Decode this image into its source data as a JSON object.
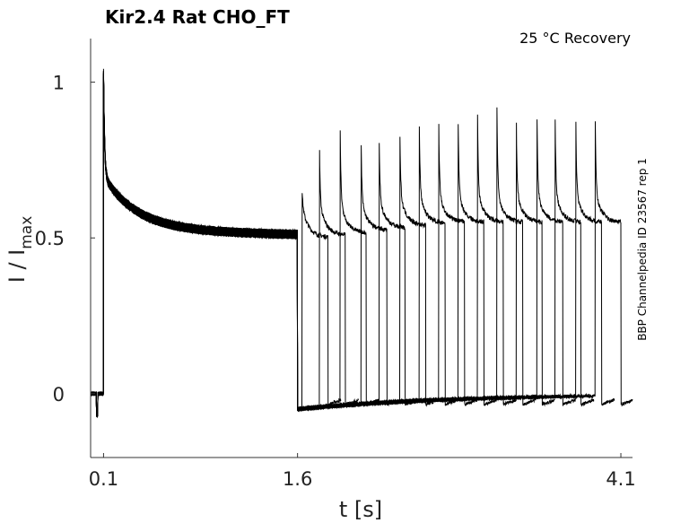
{
  "chart_data": {
    "type": "line",
    "title": "Kir2.4  Rat  CHO_FT",
    "subtitle": "25 °C  Recovery",
    "side_label": "BBP Channelpedia ID 23567 rep 1",
    "xlabel": "t [s]",
    "ylabel": "I / I",
    "ylabel_sub": "max",
    "xlim": [
      0.0,
      4.19
    ],
    "ylim": [
      -0.205,
      1.14
    ],
    "xticks": [
      0.1,
      1.6,
      4.1
    ],
    "xtick_labels": [
      "0.1",
      "1.6",
      "4.1"
    ],
    "yticks": [
      0,
      0.5,
      1
    ],
    "ytick_labels": [
      "0",
      "0.5",
      "1"
    ],
    "grid": false,
    "prepulse": {
      "start": 0.1,
      "end": 1.6,
      "peak": 1.0,
      "steady_state": 0.5
    },
    "test_pulse_duration": 0.2,
    "sweeps": [
      {
        "test_start": 1.635,
        "peak": 0.66
      },
      {
        "test_start": 1.77,
        "peak": 0.78
      },
      {
        "test_start": 1.93,
        "peak": 0.84
      },
      {
        "test_start": 2.09,
        "peak": 0.87
      },
      {
        "test_start": 2.23,
        "peak": 0.87
      },
      {
        "test_start": 2.39,
        "peak": 0.9
      },
      {
        "test_start": 2.54,
        "peak": 0.95
      },
      {
        "test_start": 2.69,
        "peak": 0.96
      },
      {
        "test_start": 2.84,
        "peak": 0.96
      },
      {
        "test_start": 2.99,
        "peak": 0.99
      },
      {
        "test_start": 3.14,
        "peak": 1.03
      },
      {
        "test_start": 3.29,
        "peak": 0.96
      },
      {
        "test_start": 3.45,
        "peak": 0.98
      },
      {
        "test_start": 3.59,
        "peak": 0.97
      },
      {
        "test_start": 3.75,
        "peak": 0.97
      },
      {
        "test_start": 3.9,
        "peak": 0.97
      }
    ]
  }
}
